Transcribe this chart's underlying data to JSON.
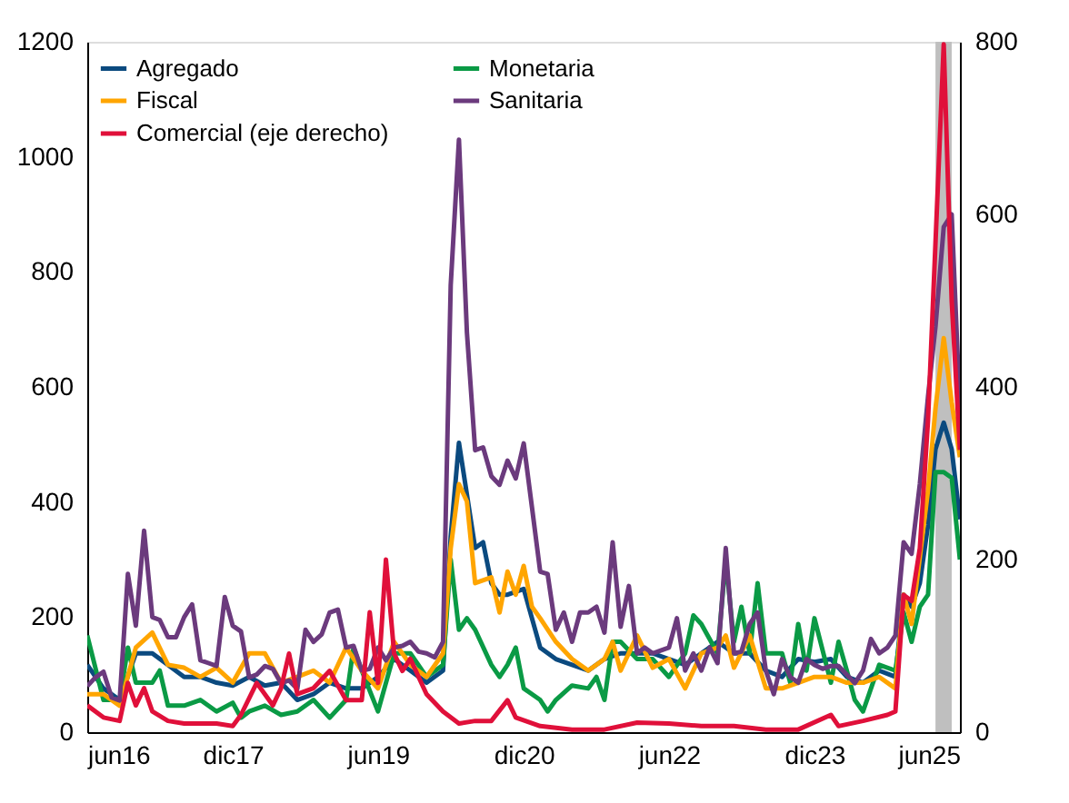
{
  "chart_data": {
    "type": "line",
    "xlim": [
      "2016-06",
      "2025-06"
    ],
    "xticks": [
      {
        "value": "2016-06",
        "label": "jun16"
      },
      {
        "value": "2017-12",
        "label": "dic17"
      },
      {
        "value": "2019-06",
        "label": "jun19"
      },
      {
        "value": "2020-12",
        "label": "dic20"
      },
      {
        "value": "2022-06",
        "label": "jun22"
      },
      {
        "value": "2023-12",
        "label": "dic23"
      },
      {
        "value": "2025-06",
        "label": "jun25"
      }
    ],
    "ylim": [
      0,
      1200
    ],
    "yticks": [
      0,
      200,
      400,
      600,
      800,
      1000,
      1200
    ],
    "y2lim": [
      0,
      800
    ],
    "y2ticks": [
      0,
      200,
      400,
      600,
      800
    ],
    "grid": false,
    "legend": "top left",
    "line_style": "solid",
    "bands": [
      {
        "axis": "x",
        "from": "2025-03",
        "to": "2025-05",
        "label": null,
        "color": "#bfbfbf"
      }
    ],
    "series": [
      {
        "name": "Agregado",
        "color": "#0b4a7f",
        "x": [
          "2016-06",
          "2016-08",
          "2016-10",
          "2016-12",
          "2017-02",
          "2017-04",
          "2017-06",
          "2017-08",
          "2017-10",
          "2017-12",
          "2018-02",
          "2018-04",
          "2018-06",
          "2018-08",
          "2018-10",
          "2018-12",
          "2019-02",
          "2019-04",
          "2019-06",
          "2019-08",
          "2019-10",
          "2019-12",
          "2020-02",
          "2020-03",
          "2020-04",
          "2020-06",
          "2020-07",
          "2020-08",
          "2020-09",
          "2020-10",
          "2020-12",
          "2021-02",
          "2021-04",
          "2021-06",
          "2021-08",
          "2021-10",
          "2021-12",
          "2022-02",
          "2022-04",
          "2022-06",
          "2022-08",
          "2022-10",
          "2022-12",
          "2023-02",
          "2023-04",
          "2023-06",
          "2023-08",
          "2023-10",
          "2023-12",
          "2024-02",
          "2024-04",
          "2024-06",
          "2024-08",
          "2024-10",
          "2024-11",
          "2024-12",
          "2025-01",
          "2025-02",
          "2025-03",
          "2025-04",
          "2025-05",
          "2025-06"
        ],
        "values": [
          117,
          76,
          56,
          137,
          137,
          117,
          96,
          96,
          86,
          81,
          96,
          81,
          86,
          56,
          66,
          86,
          76,
          76,
          96,
          127,
          107,
          86,
          107,
          340,
          503,
          320,
          330,
          259,
          239,
          239,
          249,
          147,
          127,
          117,
          107,
          127,
          137,
          137,
          137,
          127,
          117,
          137,
          157,
          137,
          137,
          107,
          96,
          127,
          122,
          127,
          96,
          86,
          107,
          96,
          239,
          218,
          259,
          360,
          492,
          538,
          492,
          370
        ]
      },
      {
        "name": "Monetaria",
        "color": "#0a9a45",
        "x": [
          "2016-06",
          "2016-08",
          "2016-10",
          "2016-11",
          "2016-12",
          "2017-02",
          "2017-03",
          "2017-04",
          "2017-06",
          "2017-08",
          "2017-10",
          "2017-12",
          "2018-01",
          "2018-02",
          "2018-04",
          "2018-06",
          "2018-08",
          "2018-10",
          "2018-12",
          "2019-02",
          "2019-03",
          "2019-04",
          "2019-06",
          "2019-08",
          "2019-10",
          "2019-12",
          "2020-02",
          "2020-03",
          "2020-04",
          "2020-05",
          "2020-06",
          "2020-08",
          "2020-09",
          "2020-10",
          "2020-11",
          "2020-12",
          "2021-02",
          "2021-03",
          "2021-04",
          "2021-06",
          "2021-08",
          "2021-09",
          "2021-10",
          "2021-11",
          "2021-12",
          "2022-02",
          "2022-04",
          "2022-06",
          "2022-08",
          "2022-09",
          "2022-10",
          "2022-12",
          "2023-01",
          "2023-02",
          "2023-03",
          "2023-04",
          "2023-05",
          "2023-06",
          "2023-08",
          "2023-09",
          "2023-10",
          "2023-11",
          "2023-12",
          "2024-02",
          "2024-03",
          "2024-04",
          "2024-05",
          "2024-06",
          "2024-08",
          "2024-10",
          "2024-11",
          "2024-12",
          "2025-01",
          "2025-02",
          "2025-03",
          "2025-04",
          "2025-05",
          "2025-06"
        ],
        "values": [
          168,
          56,
          56,
          147,
          86,
          86,
          107,
          46,
          46,
          56,
          36,
          51,
          25,
          36,
          46,
          30,
          36,
          56,
          25,
          56,
          147,
          107,
          36,
          137,
          137,
          96,
          117,
          300,
          178,
          198,
          178,
          117,
          96,
          117,
          147,
          76,
          56,
          36,
          56,
          81,
          76,
          96,
          56,
          157,
          157,
          127,
          127,
          96,
          137,
          203,
          188,
          137,
          300,
          157,
          218,
          137,
          259,
          137,
          137,
          86,
          188,
          107,
          198,
          86,
          157,
          107,
          56,
          36,
          117,
          107,
          208,
          157,
          218,
          239,
          452,
          452,
          442,
          300
        ]
      },
      {
        "name": "Fiscal",
        "color": "#ffa500",
        "x": [
          "2016-06",
          "2016-08",
          "2016-10",
          "2016-12",
          "2017-02",
          "2017-04",
          "2017-06",
          "2017-08",
          "2017-10",
          "2017-12",
          "2018-02",
          "2018-04",
          "2018-06",
          "2018-08",
          "2018-10",
          "2018-12",
          "2019-02",
          "2019-04",
          "2019-06",
          "2019-08",
          "2019-10",
          "2019-12",
          "2020-02",
          "2020-03",
          "2020-04",
          "2020-05",
          "2020-06",
          "2020-08",
          "2020-09",
          "2020-10",
          "2020-11",
          "2020-12",
          "2021-01",
          "2021-02",
          "2021-04",
          "2021-06",
          "2021-08",
          "2021-10",
          "2021-11",
          "2021-12",
          "2022-02",
          "2022-04",
          "2022-06",
          "2022-08",
          "2022-10",
          "2022-12",
          "2023-01",
          "2023-02",
          "2023-04",
          "2023-06",
          "2023-08",
          "2023-10",
          "2023-12",
          "2024-02",
          "2024-04",
          "2024-06",
          "2024-08",
          "2024-10",
          "2024-11",
          "2024-12",
          "2025-02",
          "2025-03",
          "2025-04",
          "2025-05",
          "2025-06"
        ],
        "values": [
          66,
          66,
          46,
          147,
          173,
          117,
          112,
          96,
          112,
          86,
          137,
          137,
          86,
          96,
          107,
          86,
          147,
          107,
          76,
          157,
          117,
          96,
          137,
          320,
          431,
          401,
          259,
          269,
          208,
          279,
          239,
          289,
          218,
          198,
          157,
          127,
          107,
          127,
          157,
          107,
          168,
          112,
          127,
          76,
          137,
          147,
          168,
          112,
          168,
          76,
          76,
          86,
          96,
          96,
          86,
          86,
          96,
          76,
          239,
          188,
          421,
          563,
          685,
          573,
          478
        ]
      },
      {
        "name": "Sanitaria",
        "color": "#6b3a7d",
        "x": [
          "2016-06",
          "2016-07",
          "2016-08",
          "2016-09",
          "2016-10",
          "2016-11",
          "2016-12",
          "2017-01",
          "2017-02",
          "2017-03",
          "2017-04",
          "2017-05",
          "2017-06",
          "2017-07",
          "2017-08",
          "2017-09",
          "2017-10",
          "2017-11",
          "2017-12",
          "2018-01",
          "2018-02",
          "2018-03",
          "2018-04",
          "2018-05",
          "2018-06",
          "2018-07",
          "2018-08",
          "2018-09",
          "2018-10",
          "2018-11",
          "2018-12",
          "2019-01",
          "2019-02",
          "2019-03",
          "2019-04",
          "2019-05",
          "2019-06",
          "2019-07",
          "2019-08",
          "2019-09",
          "2019-10",
          "2019-11",
          "2019-12",
          "2020-01",
          "2020-02",
          "2020-03",
          "2020-04",
          "2020-05",
          "2020-06",
          "2020-07",
          "2020-08",
          "2020-09",
          "2020-10",
          "2020-11",
          "2020-12",
          "2021-01",
          "2021-02",
          "2021-03",
          "2021-04",
          "2021-05",
          "2021-06",
          "2021-07",
          "2021-08",
          "2021-09",
          "2021-10",
          "2021-11",
          "2021-12",
          "2022-01",
          "2022-02",
          "2022-03",
          "2022-04",
          "2022-05",
          "2022-06",
          "2022-07",
          "2022-08",
          "2022-09",
          "2022-10",
          "2022-11",
          "2022-12",
          "2023-01",
          "2023-02",
          "2023-03",
          "2023-04",
          "2023-05",
          "2023-06",
          "2023-07",
          "2023-08",
          "2023-09",
          "2023-10",
          "2023-11",
          "2023-12",
          "2024-01",
          "2024-02",
          "2024-03",
          "2024-04",
          "2024-05",
          "2024-06",
          "2024-07",
          "2024-08",
          "2024-09",
          "2024-10",
          "2024-11",
          "2024-12",
          "2025-01",
          "2025-02",
          "2025-03",
          "2025-04",
          "2025-05",
          "2025-06"
        ],
        "values": [
          80,
          95,
          105,
          60,
          55,
          275,
          185,
          350,
          200,
          195,
          165,
          165,
          200,
          222,
          125,
          120,
          115,
          235,
          185,
          175,
          95,
          100,
          115,
          110,
          85,
          90,
          75,
          178,
          157,
          170,
          208,
          213,
          147,
          150,
          107,
          110,
          147,
          125,
          147,
          150,
          157,
          140,
          137,
          130,
          157,
          777,
          1030,
          695,
          490,
          495,
          445,
          430,
          472,
          441,
          502,
          391,
          279,
          275,
          178,
          208,
          157,
          208,
          208,
          218,
          173,
          330,
          183,
          254,
          137,
          147,
          137,
          142,
          147,
          198,
          107,
          137,
          107,
          147,
          120,
          320,
          137,
          140,
          188,
          208,
          107,
          66,
          127,
          96,
          86,
          127,
          117,
          110,
          115,
          115,
          100,
          85,
          107,
          162,
          137,
          147,
          168,
          330,
          310,
          431,
          584,
          705,
          878,
          900,
          560
        ]
      },
      {
        "name": "Comercial (eje derecho)",
        "color": "#e0103a",
        "axis": "y2",
        "x": [
          "2016-06",
          "2016-08",
          "2016-10",
          "2016-11",
          "2016-12",
          "2017-01",
          "2017-02",
          "2017-04",
          "2017-06",
          "2017-08",
          "2017-10",
          "2017-12",
          "2018-01",
          "2018-03",
          "2018-04",
          "2018-05",
          "2018-06",
          "2018-07",
          "2018-08",
          "2018-10",
          "2018-12",
          "2019-02",
          "2019-04",
          "2019-05",
          "2019-06",
          "2019-07",
          "2019-08",
          "2019-09",
          "2019-10",
          "2019-11",
          "2019-12",
          "2020-02",
          "2020-04",
          "2020-06",
          "2020-08",
          "2020-10",
          "2020-11",
          "2021-02",
          "2021-06",
          "2021-10",
          "2022-02",
          "2022-06",
          "2022-10",
          "2023-02",
          "2023-06",
          "2023-10",
          "2024-02",
          "2024-03",
          "2024-06",
          "2024-09",
          "2024-10",
          "2024-11",
          "2024-12",
          "2025-01",
          "2025-02",
          "2025-03",
          "2025-04",
          "2025-05",
          "2025-06"
        ],
        "values": [
          31,
          17,
          13,
          57,
          31,
          51,
          24,
          13,
          10,
          10,
          10,
          7,
          20,
          57,
          44,
          31,
          51,
          91,
          44,
          51,
          71,
          37,
          37,
          139,
          57,
          200,
          91,
          71,
          85,
          64,
          44,
          24,
          10,
          13,
          13,
          37,
          17,
          7,
          3,
          3,
          11,
          10,
          7,
          7,
          3,
          3,
          20,
          7,
          13,
          20,
          24,
          159,
          152,
          213,
          362,
          567,
          797,
          500,
          327
        ]
      }
    ]
  }
}
